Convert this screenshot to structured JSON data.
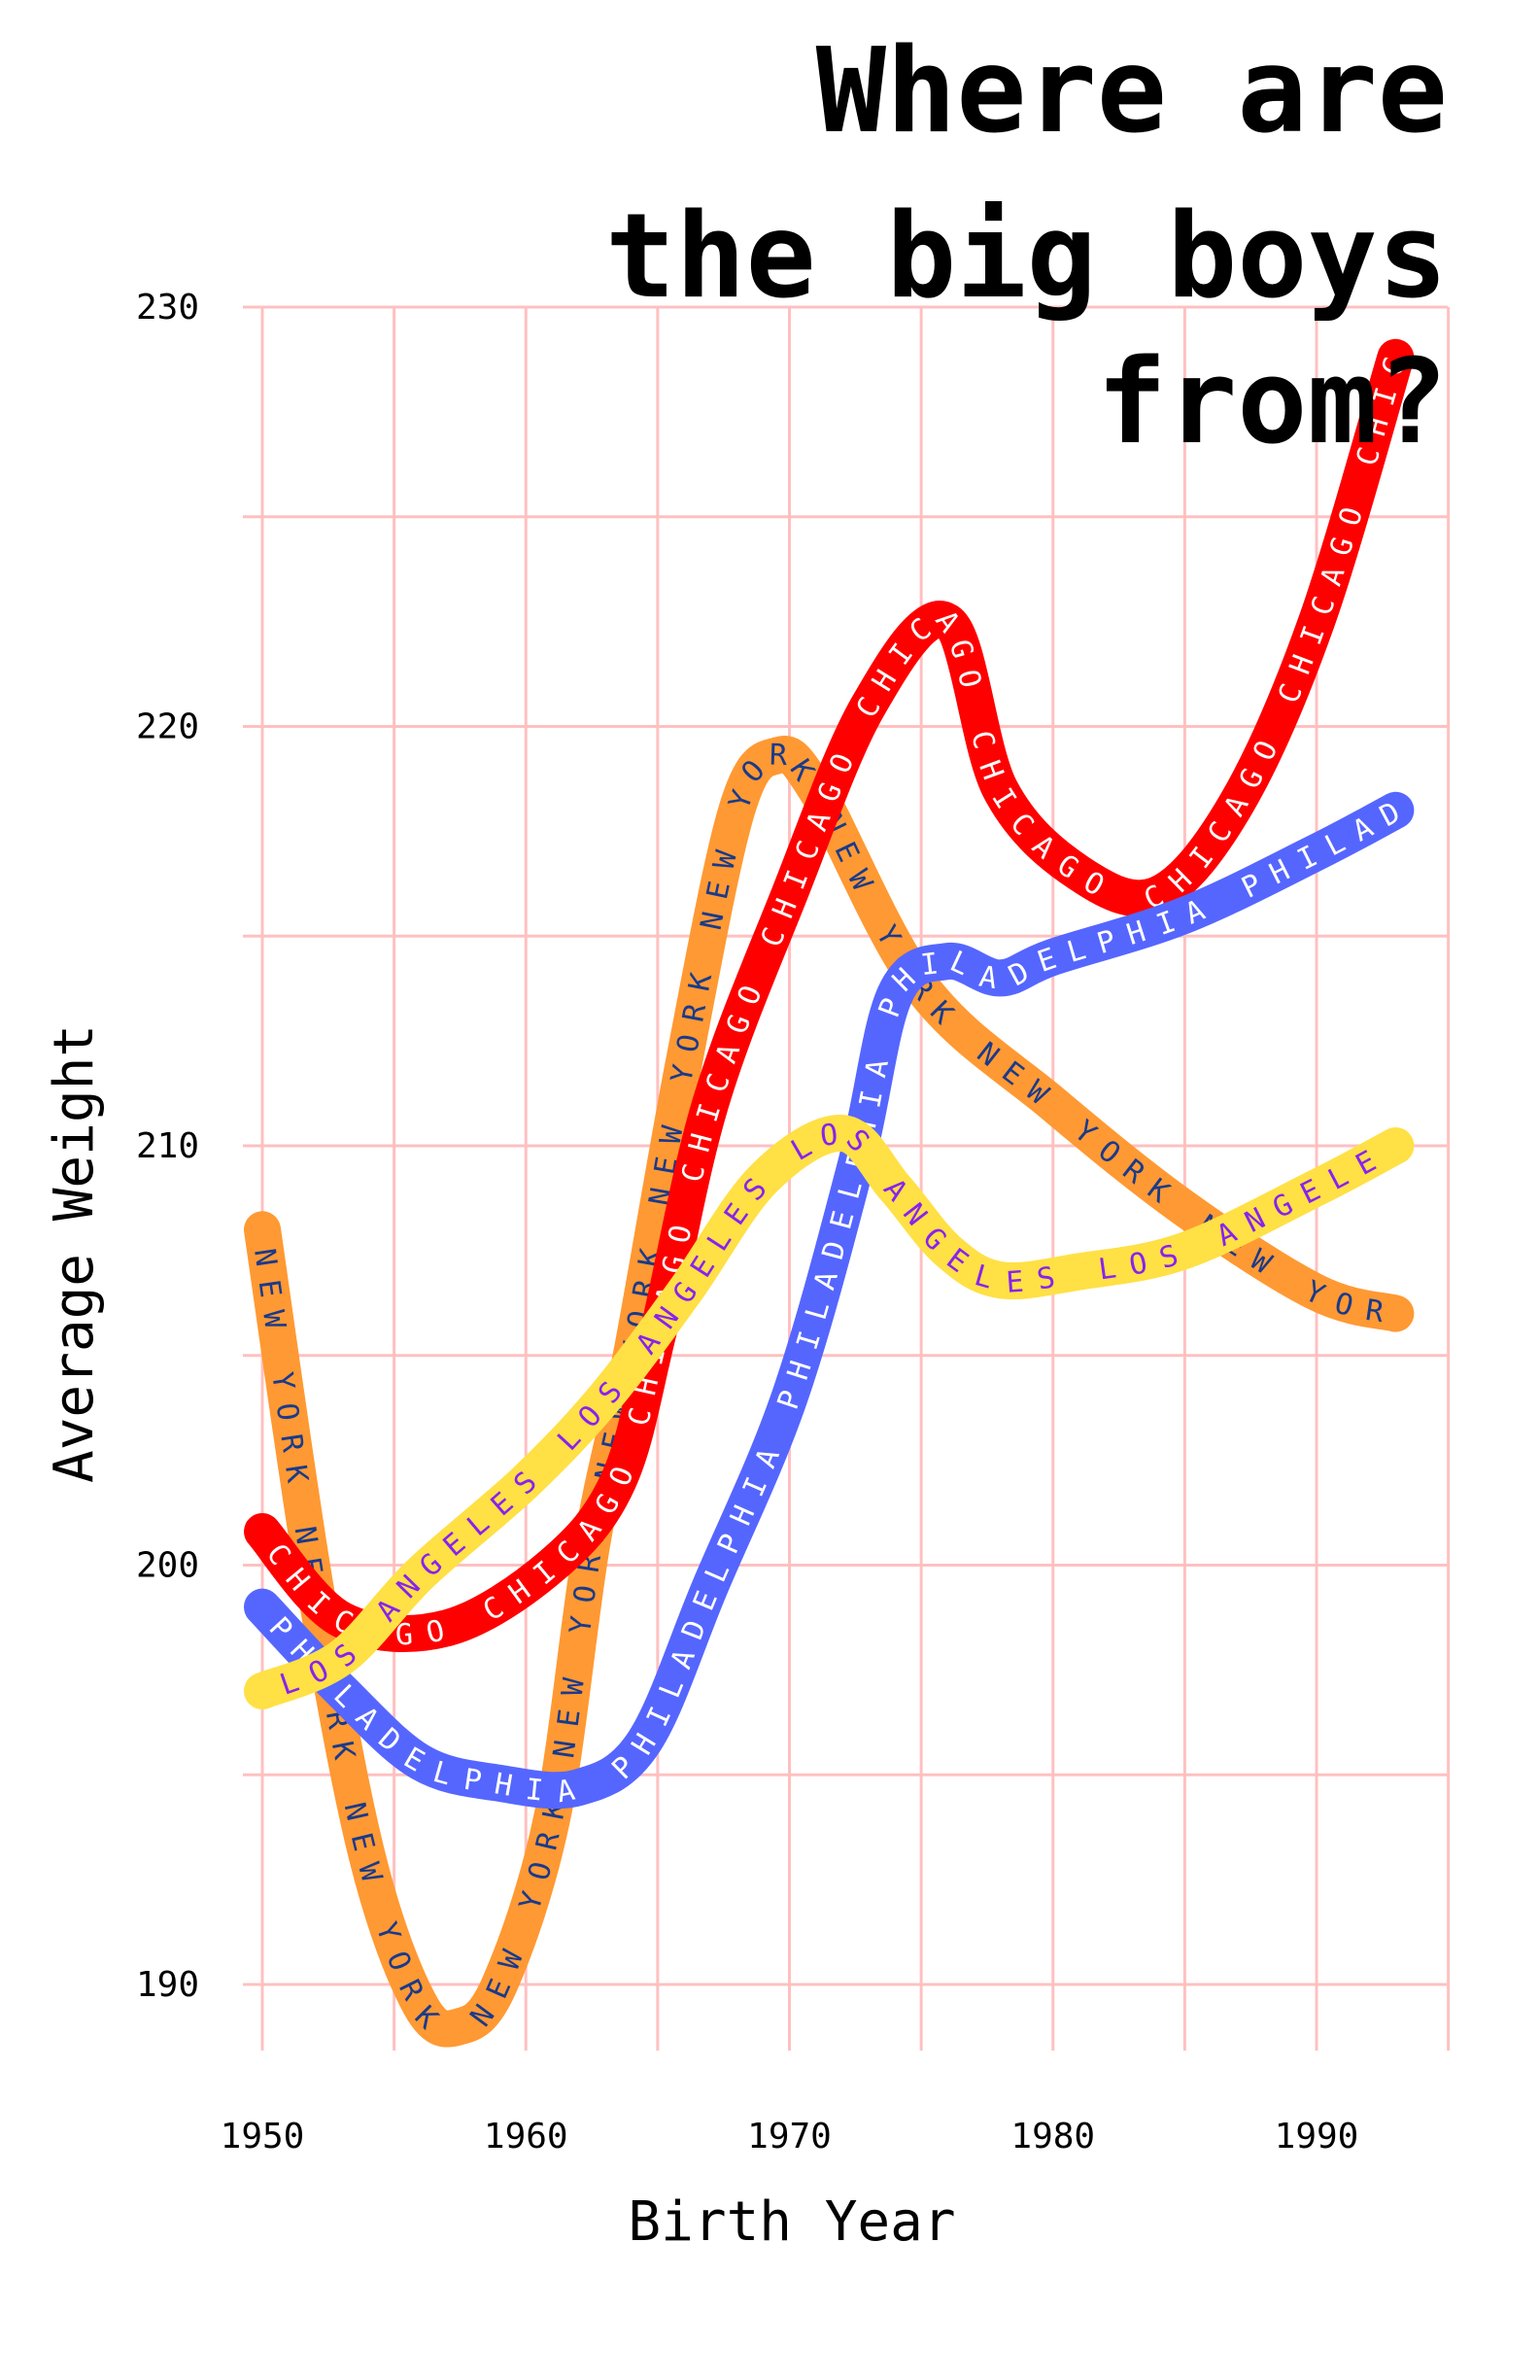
{
  "title_lines": [
    "Where are",
    "the big boys",
    "from?"
  ],
  "chart_data": {
    "type": "line",
    "title": "Where are the big boys from?",
    "xlabel": "Birth Year",
    "ylabel": "Average Weight",
    "xlim": [
      1949,
      1995
    ],
    "ylim": [
      187.5,
      230
    ],
    "xticks": [
      1950,
      1960,
      1970,
      1980,
      1990
    ],
    "yticks": [
      190,
      200,
      210,
      220,
      230
    ],
    "grid": true,
    "grid_color": "#ffc0c0",
    "series": [
      {
        "name": "NEW YORK",
        "color": "#ff9933",
        "text_color": "#1a3a8a",
        "x": [
          1950,
          1952,
          1954,
          1956,
          1957.5,
          1959,
          1961,
          1962.5,
          1964,
          1966,
          1968,
          1969.5,
          1971,
          1975,
          1980,
          1985,
          1990,
          1993
        ],
        "y": [
          208,
          199.5,
          193,
          189.5,
          189,
          190,
          194,
          200.5,
          205,
          212,
          218,
          219.3,
          218.5,
          213.8,
          211,
          208.5,
          206.5,
          206
        ]
      },
      {
        "name": "CHICAGO",
        "color": "#ff0000",
        "text_color": "#ffffff",
        "x": [
          1950,
          1953,
          1957,
          1961,
          1963.5,
          1965,
          1967,
          1970,
          1973,
          1976,
          1978,
          1981,
          1984,
          1987,
          1990,
          1993
        ],
        "y": [
          200.8,
          198.7,
          198.5,
          200,
          202,
          205.5,
          211,
          216,
          220.5,
          222.5,
          218.5,
          216.5,
          216,
          218.2,
          222.5,
          228.8
        ]
      },
      {
        "name": "PHILADELPHIA",
        "color": "#5566ff",
        "text_color": "#ffffff",
        "x": [
          1950,
          1953,
          1956,
          1959,
          1962,
          1964.5,
          1967,
          1970,
          1972.5,
          1974,
          1976,
          1978,
          1980,
          1985,
          1990,
          1993
        ],
        "y": [
          199,
          197,
          195.3,
          194.8,
          194.7,
          195.8,
          199.5,
          204,
          209.5,
          213.6,
          214.4,
          214,
          214.5,
          215.5,
          217,
          218
        ]
      },
      {
        "name": "LOS ANGELES",
        "color": "#ffe045",
        "text_color": "#8822ee",
        "x": [
          1950,
          1953,
          1956,
          1960,
          1963,
          1966,
          1969,
          1972,
          1974,
          1976,
          1978,
          1981,
          1985,
          1990,
          1993
        ],
        "y": [
          197,
          197.8,
          199.8,
          202,
          204,
          206.5,
          209.2,
          210.3,
          209,
          207.5,
          206.8,
          207,
          207.5,
          209,
          210
        ]
      }
    ]
  }
}
